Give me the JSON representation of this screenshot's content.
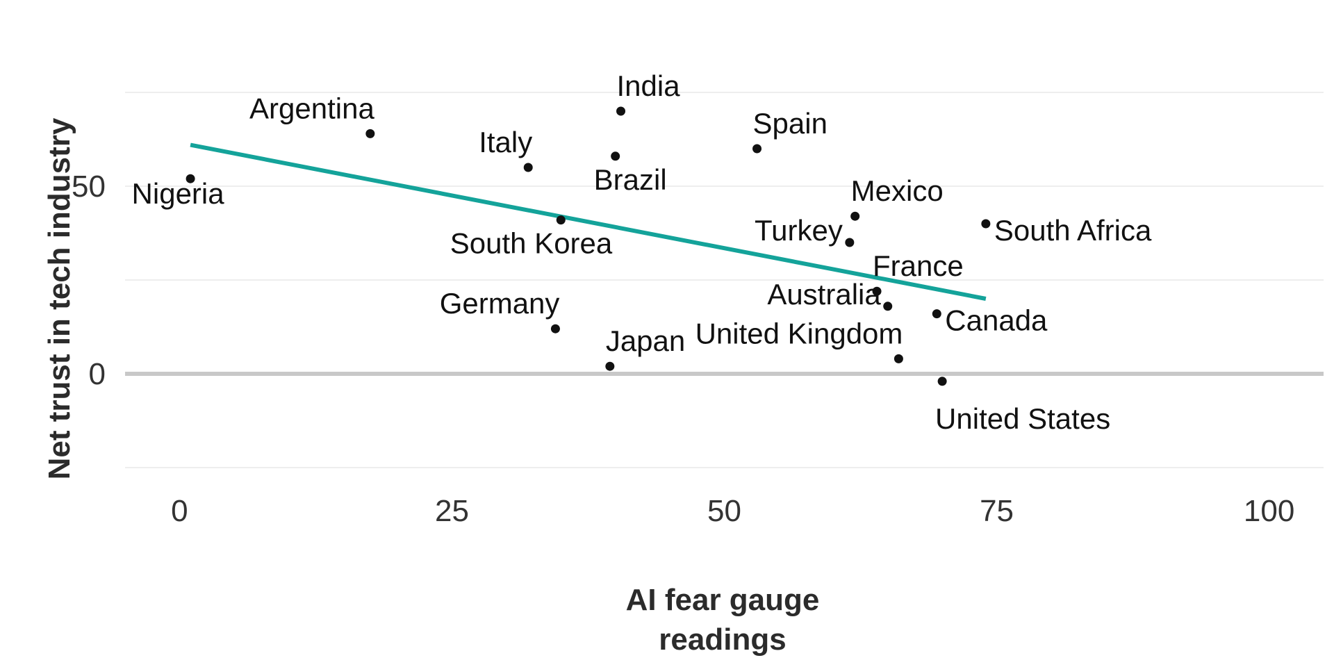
{
  "chart_data": {
    "type": "scatter",
    "xlabel_lines": [
      "AI fear gauge",
      "readings"
    ],
    "ylabel": "Net trust in tech industry",
    "xlim": [
      -5,
      105
    ],
    "ylim": [
      -25,
      75
    ],
    "x_ticks": [
      0,
      25,
      50,
      75,
      100
    ],
    "y_ticks": [
      0,
      50
    ],
    "grid": true,
    "colors": {
      "trend": "#14a39a",
      "points": "#111111",
      "zero_line": "#c8c8c8"
    },
    "points": [
      {
        "label": "Nigeria",
        "x": 1,
        "y": 52,
        "pos": "below"
      },
      {
        "label": "Argentina",
        "x": 17.5,
        "y": 64,
        "pos": "above-left"
      },
      {
        "label": "Italy",
        "x": 32,
        "y": 55,
        "pos": "above-left"
      },
      {
        "label": "South Korea",
        "x": 35,
        "y": 41,
        "pos": "below-left"
      },
      {
        "label": "Germany",
        "x": 34.5,
        "y": 12,
        "pos": "above-left"
      },
      {
        "label": "Japan",
        "x": 39.5,
        "y": 2,
        "pos": "above-right"
      },
      {
        "label": "India",
        "x": 40.5,
        "y": 70,
        "pos": "above-right"
      },
      {
        "label": "Brazil",
        "x": 40,
        "y": 58,
        "pos": "below-left"
      },
      {
        "label": "Spain",
        "x": 53,
        "y": 60,
        "pos": "above-right"
      },
      {
        "label": "Mexico",
        "x": 62,
        "y": 42,
        "pos": "above-right"
      },
      {
        "label": "Turkey",
        "x": 61.5,
        "y": 35,
        "pos": "left"
      },
      {
        "label": "France",
        "x": 64,
        "y": 22,
        "pos": "above-right"
      },
      {
        "label": "Australia",
        "x": 65,
        "y": 18,
        "pos": "left"
      },
      {
        "label": "United Kingdom",
        "x": 66,
        "y": 4,
        "pos": "above-left"
      },
      {
        "label": "Canada",
        "x": 69.5,
        "y": 16,
        "pos": "right"
      },
      {
        "label": "United States",
        "x": 70,
        "y": -2,
        "pos": "below"
      },
      {
        "label": "South Africa",
        "x": 74,
        "y": 40,
        "pos": "right"
      }
    ],
    "trendline": {
      "x": [
        1,
        74
      ],
      "y": [
        61,
        20
      ]
    }
  }
}
